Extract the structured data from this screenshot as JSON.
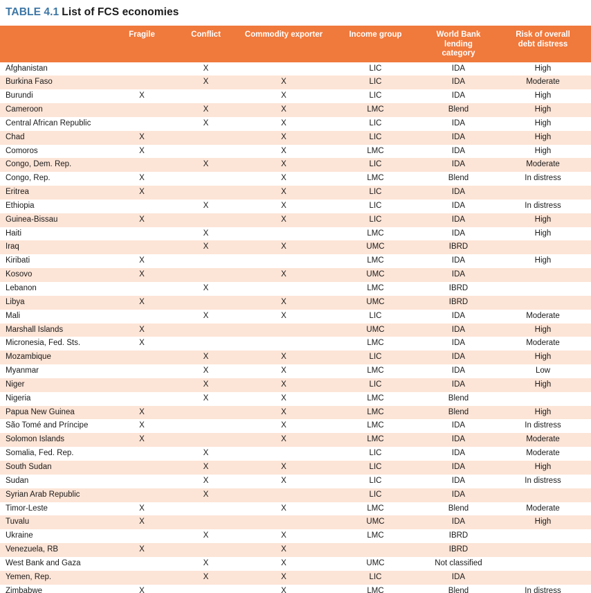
{
  "title": {
    "label": "TABLE 4.1",
    "text": "List of FCS economies"
  },
  "colors": {
    "header_bg": "#F0793C",
    "row_alt_bg": "#FCE4D6",
    "title_accent": "#3D76A5",
    "bottom_border": "#231F20"
  },
  "table": {
    "columns": [
      "",
      "Fragile",
      "Conflict",
      "Commodity exporter",
      "Income group",
      "World Bank lending\ncategory",
      "Risk of overall\ndebt distress"
    ],
    "rows": [
      [
        "Afghanistan",
        "",
        "X",
        "",
        "LIC",
        "IDA",
        "High"
      ],
      [
        "Burkina Faso",
        "",
        "X",
        "X",
        "LIC",
        "IDA",
        "Moderate"
      ],
      [
        "Burundi",
        "X",
        "",
        "X",
        "LIC",
        "IDA",
        "High"
      ],
      [
        "Cameroon",
        "",
        "X",
        "X",
        "LMC",
        "Blend",
        "High"
      ],
      [
        "Central African Republic",
        "",
        "X",
        "X",
        "LIC",
        "IDA",
        "High"
      ],
      [
        "Chad",
        "X",
        "",
        "X",
        "LIC",
        "IDA",
        "High"
      ],
      [
        "Comoros",
        "X",
        "",
        "X",
        "LMC",
        "IDA",
        "High"
      ],
      [
        "Congo, Dem. Rep.",
        "",
        "X",
        "X",
        "LIC",
        "IDA",
        "Moderate"
      ],
      [
        "Congo, Rep.",
        "X",
        "",
        "X",
        "LMC",
        "Blend",
        "In distress"
      ],
      [
        "Eritrea",
        "X",
        "",
        "X",
        "LIC",
        "IDA",
        ""
      ],
      [
        "Ethiopia",
        "",
        "X",
        "X",
        "LIC",
        "IDA",
        "In distress"
      ],
      [
        "Guinea-Bissau",
        "X",
        "",
        "X",
        "LIC",
        "IDA",
        "High"
      ],
      [
        "Haiti",
        "",
        "X",
        "",
        "LMC",
        "IDA",
        "High"
      ],
      [
        "Iraq",
        "",
        "X",
        "X",
        "UMC",
        "IBRD",
        ""
      ],
      [
        "Kiribati",
        "X",
        "",
        "",
        "LMC",
        "IDA",
        "High"
      ],
      [
        "Kosovo",
        "X",
        "",
        "X",
        "UMC",
        "IDA",
        ""
      ],
      [
        "Lebanon",
        "",
        "X",
        "",
        "LMC",
        "IBRD",
        ""
      ],
      [
        "Libya",
        "X",
        "",
        "X",
        "UMC",
        "IBRD",
        ""
      ],
      [
        "Mali",
        "",
        "X",
        "X",
        "LIC",
        "IDA",
        "Moderate"
      ],
      [
        "Marshall Islands",
        "X",
        "",
        "",
        "UMC",
        "IDA",
        "High"
      ],
      [
        "Micronesia, Fed. Sts.",
        "X",
        "",
        "",
        "LMC",
        "IDA",
        "Moderate"
      ],
      [
        "Mozambique",
        "",
        "X",
        "X",
        "LIC",
        "IDA",
        "High"
      ],
      [
        "Myanmar",
        "",
        "X",
        "X",
        "LMC",
        "IDA",
        "Low"
      ],
      [
        "Niger",
        "",
        "X",
        "X",
        "LIC",
        "IDA",
        "High"
      ],
      [
        "Nigeria",
        "",
        "X",
        "X",
        "LMC",
        "Blend",
        ""
      ],
      [
        "Papua New Guinea",
        "X",
        "",
        "X",
        "LMC",
        "Blend",
        "High"
      ],
      [
        "São Tomé and Príncipe",
        "X",
        "",
        "X",
        "LMC",
        "IDA",
        "In distress"
      ],
      [
        "Solomon Islands",
        "X",
        "",
        "X",
        "LMC",
        "IDA",
        "Moderate"
      ],
      [
        "Somalia, Fed. Rep.",
        "",
        "X",
        "",
        "LIC",
        "IDA",
        "Moderate"
      ],
      [
        "South Sudan",
        "",
        "X",
        "X",
        "LIC",
        "IDA",
        "High"
      ],
      [
        "Sudan",
        "",
        "X",
        "X",
        "LIC",
        "IDA",
        "In distress"
      ],
      [
        "Syrian Arab Republic",
        "",
        "X",
        "",
        "LIC",
        "IDA",
        ""
      ],
      [
        "Timor-Leste",
        "X",
        "",
        "X",
        "LMC",
        "Blend",
        "Moderate"
      ],
      [
        "Tuvalu",
        "X",
        "",
        "",
        "UMC",
        "IDA",
        "High"
      ],
      [
        "Ukraine",
        "",
        "X",
        "X",
        "LMC",
        "IBRD",
        ""
      ],
      [
        "Venezuela, RB",
        "X",
        "",
        "X",
        "",
        "IBRD",
        ""
      ],
      [
        "West Bank and Gaza",
        "",
        "X",
        "X",
        "UMC",
        "Not classified",
        ""
      ],
      [
        "Yemen, Rep.",
        "",
        "X",
        "X",
        "LIC",
        "IDA",
        ""
      ],
      [
        "Zimbabwe",
        "X",
        "",
        "X",
        "LMC",
        "Blend",
        "In distress"
      ]
    ]
  }
}
